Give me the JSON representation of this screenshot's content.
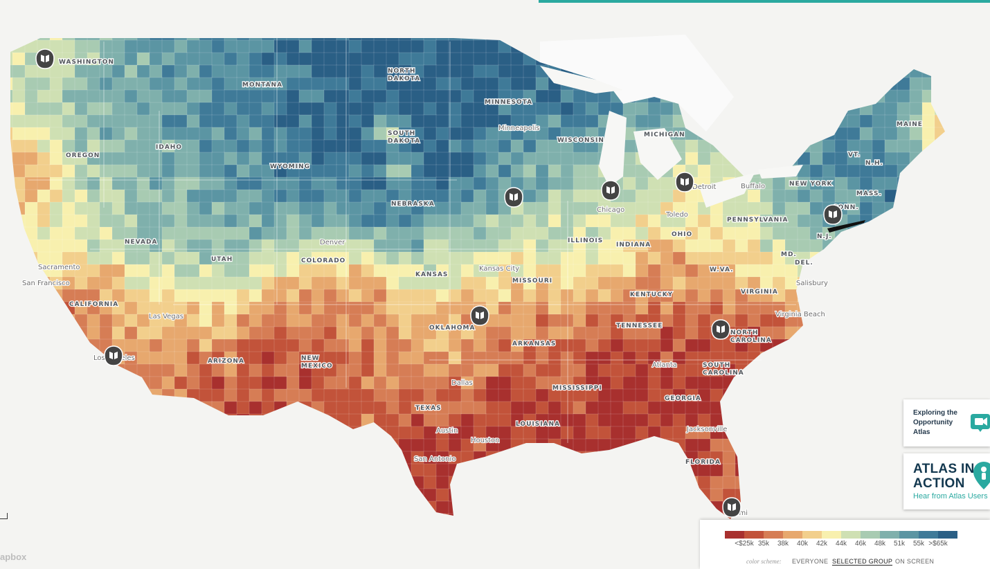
{
  "states": [
    "WASHINGTON",
    "MONTANA",
    "NORTH DAKOTA",
    "MINNESOTA",
    "OREGON",
    "IDAHO",
    "SOUTH DAKOTA",
    "WISCONSIN",
    "MICHIGAN",
    "MAINE",
    "WYOMING",
    "NEW YORK",
    "NEBRASKA",
    "PENNSYLVANIA",
    "NEVADA",
    "UTAH",
    "COLORADO",
    "ILLINOIS",
    "INDIANA",
    "OHIO",
    "KANSAS",
    "MISSOURI",
    "CALIFORNIA",
    "KENTUCKY",
    "VIRGINIA",
    "TENNESSEE",
    "OKLAHOMA",
    "ARKANSAS",
    "NORTH CAROLINA",
    "ARIZONA",
    "NEW MEXICO",
    "SOUTH CAROLINA",
    "MISSISSIPPI",
    "GEORGIA",
    "TEXAS",
    "LOUISIANA",
    "FLORIDA",
    "VT.",
    "N.H.",
    "MASS.",
    "CONN.",
    "N.J.",
    "MD.",
    "DEL.",
    "W.VA."
  ],
  "cities": [
    "Minneapolis",
    "Detroit",
    "Buffalo",
    "Chicago",
    "Toledo",
    "Denver",
    "Sacramento",
    "San Francisco",
    "Kansas City",
    "Salisbury",
    "Las Vegas",
    "Virginia Beach",
    "Atlanta",
    "Los Angeles",
    "Dallas",
    "Jacksonville",
    "Austin",
    "Houston",
    "San Antonio",
    "Miami"
  ],
  "legend": {
    "colors": [
      "#a8302e",
      "#c2533a",
      "#d67d55",
      "#e7a86e",
      "#f2cf8c",
      "#f8f0ae",
      "#cfe0b3",
      "#a8cbb2",
      "#7fb0ac",
      "#5b95a3",
      "#3f7a98",
      "#2a5f85"
    ],
    "labels": [
      "<$25k",
      "35k",
      "38k",
      "40k",
      "42k",
      "44k",
      "46k",
      "48k",
      "51k",
      "55k",
      ">$65k"
    ],
    "color_scheme_label": "color scheme:",
    "options": [
      "EVERYONE",
      "SELECTED GROUP",
      "ON SCREEN"
    ],
    "selected": "SELECTED GROUP"
  },
  "card1": {
    "line1": "Exploring the",
    "line2": "Opportunity",
    "line3": "Atlas"
  },
  "card2": {
    "title1": "ATLAS IN",
    "title2": "ACTION",
    "subtitle": "Hear from Atlas Users"
  },
  "attribution": "apbox",
  "icons": {
    "story_marker": "book-pin-icon",
    "video": "video-camera-icon",
    "atlas_pin": "person-pin-icon"
  }
}
